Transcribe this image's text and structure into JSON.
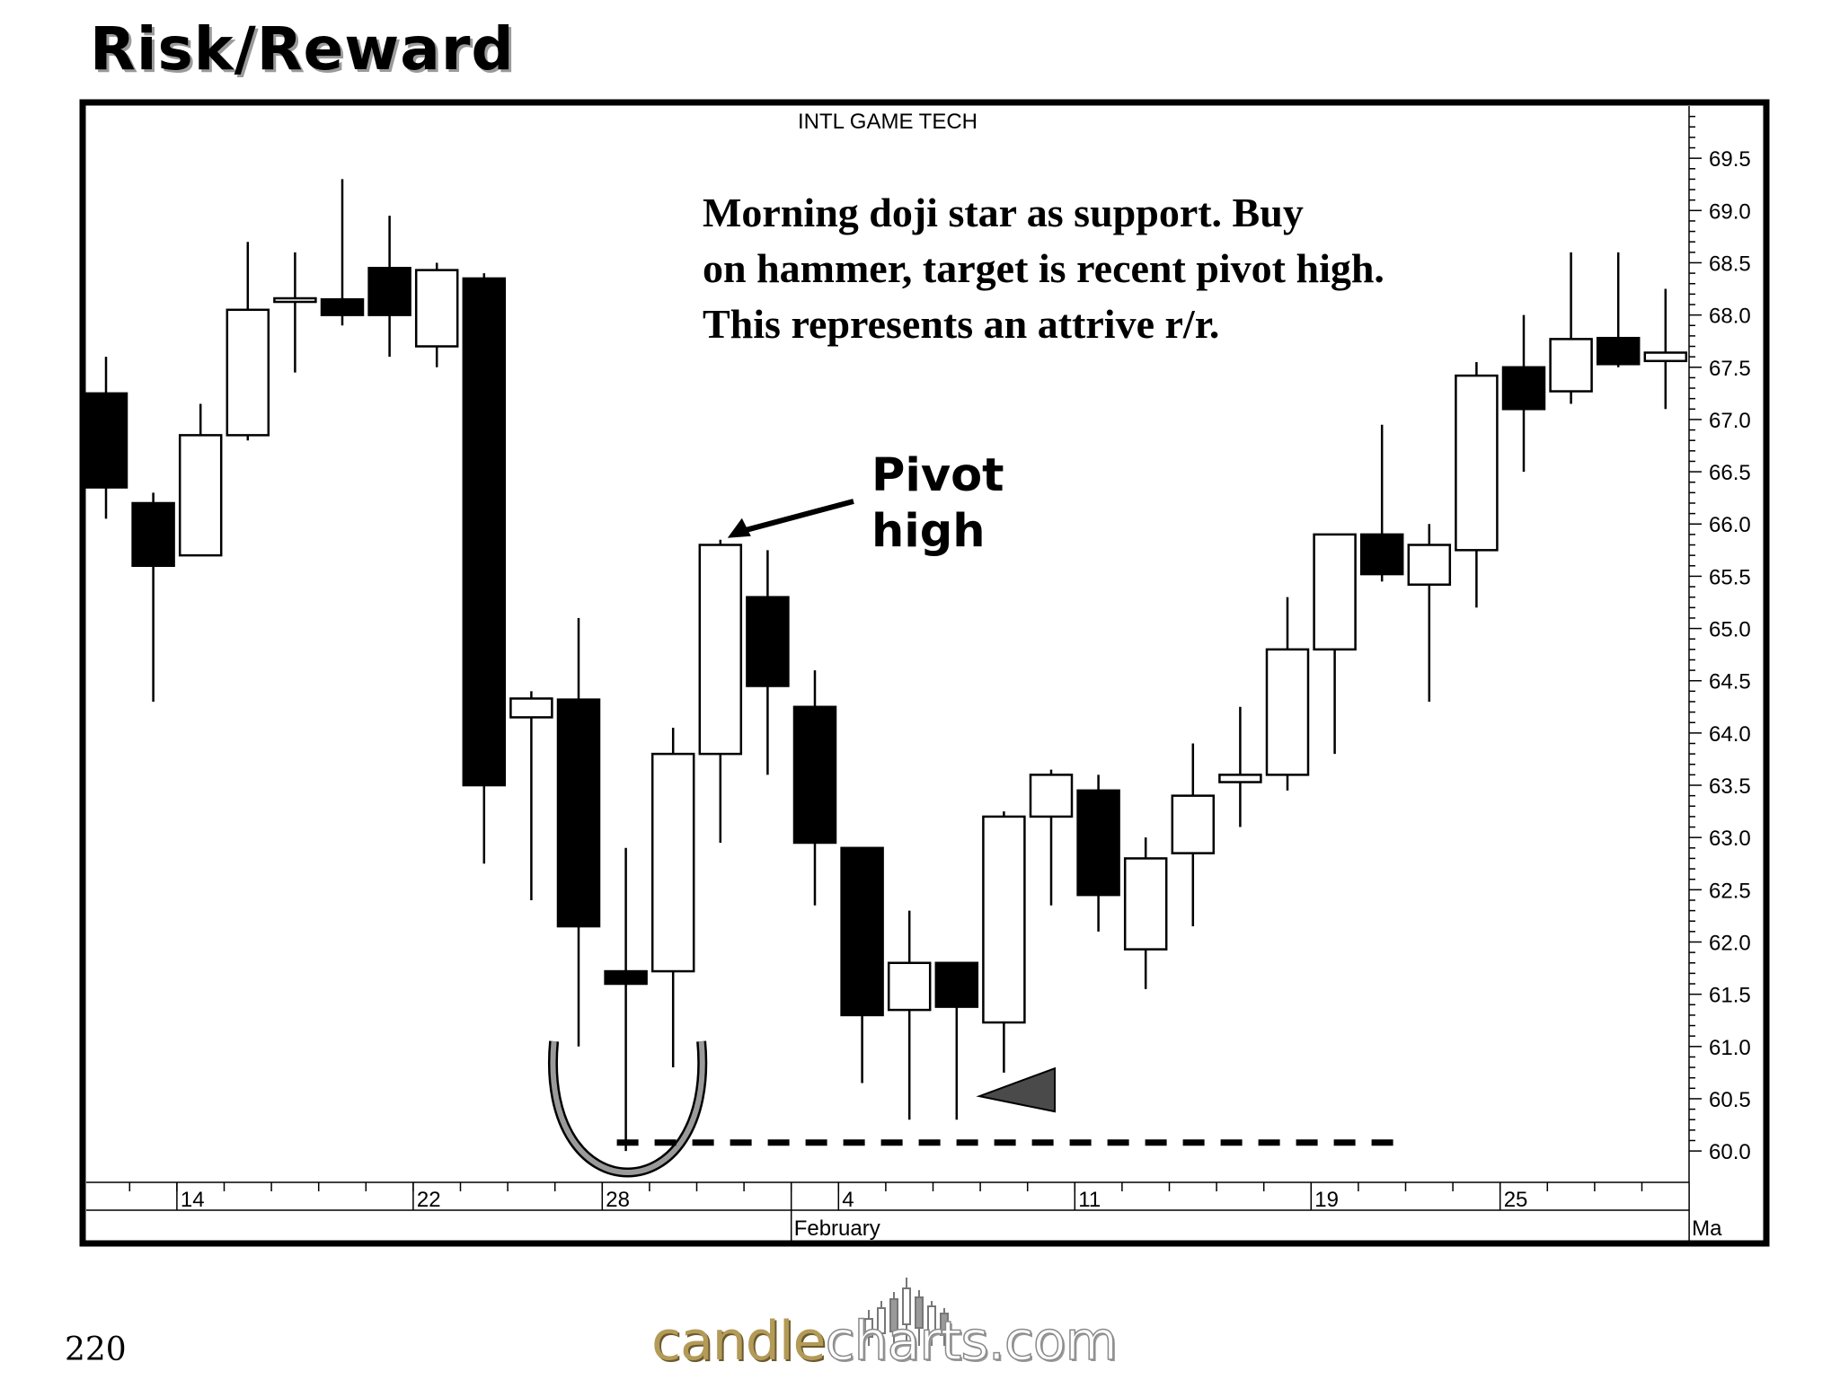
{
  "slide": {
    "title": "Risk/Reward",
    "page_number": "220"
  },
  "logo": {
    "part1": "candle",
    "part2": "charts",
    "part3": ".com"
  },
  "chart_data": {
    "type": "candlestick",
    "title": "INTL GAME TECH",
    "ylim": [
      59.7,
      70.0
    ],
    "y_ticks": [
      60.0,
      60.5,
      61.0,
      61.5,
      62.0,
      62.5,
      63.0,
      63.5,
      64.0,
      64.5,
      65.0,
      65.5,
      66.0,
      66.5,
      67.0,
      67.5,
      68.0,
      68.5,
      69.0,
      69.5
    ],
    "x_date_labels": [
      {
        "index": 1.5,
        "label": "14"
      },
      {
        "index": 6.5,
        "label": "22"
      },
      {
        "index": 10.5,
        "label": "28"
      },
      {
        "index": 15.5,
        "label": "4"
      },
      {
        "index": 20.5,
        "label": "11"
      },
      {
        "index": 25.5,
        "label": "19"
      },
      {
        "index": 29.5,
        "label": "25"
      }
    ],
    "month_labels": [
      {
        "index": 14.5,
        "label": "February"
      },
      {
        "index": 33.5,
        "label": "Ma"
      }
    ],
    "candles": [
      {
        "open": 67.25,
        "high": 67.6,
        "low": 66.05,
        "close": 66.35
      },
      {
        "open": 66.2,
        "high": 66.3,
        "low": 64.3,
        "close": 65.6
      },
      {
        "open": 65.7,
        "high": 67.15,
        "low": 65.7,
        "close": 66.85
      },
      {
        "open": 66.85,
        "high": 68.7,
        "low": 66.8,
        "close": 68.05
      },
      {
        "open": 68.13,
        "high": 68.6,
        "low": 67.45,
        "close": 68.16
      },
      {
        "open": 68.15,
        "high": 69.3,
        "low": 67.9,
        "close": 68.0
      },
      {
        "open": 68.45,
        "high": 68.95,
        "low": 67.6,
        "close": 68.0
      },
      {
        "open": 67.7,
        "high": 68.5,
        "low": 67.5,
        "close": 68.43
      },
      {
        "open": 68.35,
        "high": 68.4,
        "low": 62.75,
        "close": 63.5
      },
      {
        "open": 64.15,
        "high": 64.4,
        "low": 62.4,
        "close": 64.33
      },
      {
        "open": 64.32,
        "high": 65.1,
        "low": 61.0,
        "close": 62.15
      },
      {
        "open": 61.72,
        "high": 62.9,
        "low": 60.0,
        "close": 61.6
      },
      {
        "open": 61.72,
        "high": 64.05,
        "low": 60.8,
        "close": 63.8
      },
      {
        "open": 63.8,
        "high": 65.85,
        "low": 62.95,
        "close": 65.8
      },
      {
        "open": 65.3,
        "high": 65.75,
        "low": 63.6,
        "close": 64.45
      },
      {
        "open": 64.25,
        "high": 64.6,
        "low": 62.35,
        "close": 62.95
      },
      {
        "open": 62.9,
        "high": 62.9,
        "low": 60.65,
        "close": 61.3
      },
      {
        "open": 61.35,
        "high": 62.3,
        "low": 60.3,
        "close": 61.8
      },
      {
        "open": 61.8,
        "high": 61.8,
        "low": 60.3,
        "close": 61.38
      },
      {
        "open": 61.23,
        "high": 63.25,
        "low": 60.75,
        "close": 63.2
      },
      {
        "open": 63.2,
        "high": 63.65,
        "low": 62.35,
        "close": 63.6
      },
      {
        "open": 63.45,
        "high": 63.6,
        "low": 62.1,
        "close": 62.45
      },
      {
        "open": 61.93,
        "high": 63.0,
        "low": 61.55,
        "close": 62.8
      },
      {
        "open": 62.85,
        "high": 63.9,
        "low": 62.15,
        "close": 63.4
      },
      {
        "open": 63.53,
        "high": 64.25,
        "low": 63.1,
        "close": 63.6
      },
      {
        "open": 63.6,
        "high": 65.3,
        "low": 63.45,
        "close": 64.8
      },
      {
        "open": 64.8,
        "high": 65.9,
        "low": 63.8,
        "close": 65.9
      },
      {
        "open": 65.9,
        "high": 66.95,
        "low": 65.45,
        "close": 65.52
      },
      {
        "open": 65.42,
        "high": 66.0,
        "low": 64.3,
        "close": 65.8
      },
      {
        "open": 65.75,
        "high": 67.55,
        "low": 65.2,
        "close": 67.42
      },
      {
        "open": 67.5,
        "high": 68.0,
        "low": 66.5,
        "close": 67.1
      },
      {
        "open": 67.27,
        "high": 68.6,
        "low": 67.15,
        "close": 67.77
      },
      {
        "open": 67.78,
        "high": 68.6,
        "low": 67.5,
        "close": 67.53
      },
      {
        "open": 67.56,
        "high": 68.25,
        "low": 67.1,
        "close": 67.64
      }
    ],
    "annotations": {
      "note": "Morning doji star as support. Buy on hammer, target is recent pivot high. This represents an attrive r/r.",
      "pivot_label_line1": "Pivot",
      "pivot_label_line2": "high",
      "support_level": 60.08,
      "pivot_high_value": 65.85
    }
  }
}
